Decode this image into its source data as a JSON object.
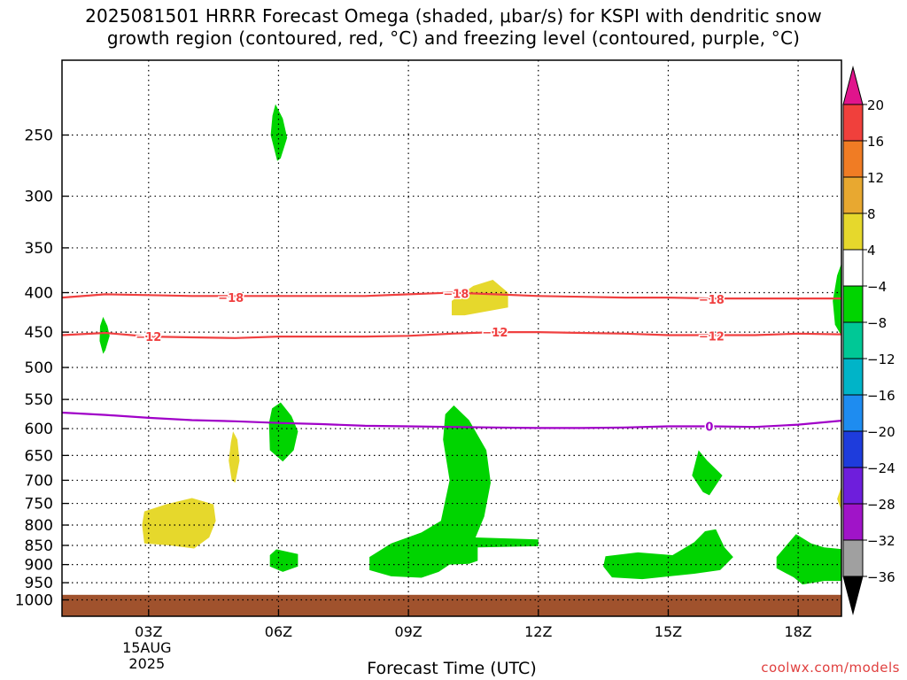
{
  "chart_data": {
    "type": "heatmap",
    "title_line1": "2025081501 HRRR Forecast Omega (shaded, μbar/s) for KSPI with dendritic snow",
    "title_line2": "growth region (contoured, red, °C) and freezing level (contoured, purple, °C)",
    "xlabel": "Forecast Time (UTC)",
    "credit": "coolwx.com/models",
    "x_range_hours": [
      1,
      19
    ],
    "y_scale": "log-pressure",
    "y_range_mb": [
      200,
      1050
    ],
    "grid": "dotted",
    "x_ticks": [
      {
        "hour": 3,
        "label": "03Z",
        "sub": [
          "15AUG",
          "2025"
        ]
      },
      {
        "hour": 6,
        "label": "06Z"
      },
      {
        "hour": 9,
        "label": "09Z"
      },
      {
        "hour": 12,
        "label": "12Z"
      },
      {
        "hour": 15,
        "label": "15Z"
      },
      {
        "hour": 18,
        "label": "18Z"
      }
    ],
    "y_ticks": [
      250,
      300,
      350,
      400,
      450,
      500,
      550,
      600,
      650,
      700,
      750,
      800,
      850,
      900,
      950,
      1000
    ],
    "colorbar": {
      "labels": [
        "20",
        "16",
        "12",
        "8",
        "4",
        "−4",
        "−8",
        "−12",
        "−16",
        "−20",
        "−24",
        "−28",
        "−32",
        "−36"
      ],
      "top_color": "#e0148c",
      "bottom_color": "#000000",
      "bands": [
        {
          "from": 16,
          "to": 20,
          "color": "#f0403c"
        },
        {
          "from": 12,
          "to": 16,
          "color": "#f07c24"
        },
        {
          "from": 8,
          "to": 12,
          "color": "#e8a830"
        },
        {
          "from": 4,
          "to": 8,
          "color": "#e6d82c"
        },
        {
          "from": -4,
          "to": 4,
          "color": "#ffffff"
        },
        {
          "from": -8,
          "to": -4,
          "color": "#00d400"
        },
        {
          "from": -12,
          "to": -8,
          "color": "#00c896"
        },
        {
          "from": -16,
          "to": -12,
          "color": "#00b4c8"
        },
        {
          "from": -20,
          "to": -16,
          "color": "#1e8cf0"
        },
        {
          "from": -24,
          "to": -20,
          "color": "#1e3cdc"
        },
        {
          "from": -28,
          "to": -24,
          "color": "#6e1edc"
        },
        {
          "from": -32,
          "to": -28,
          "color": "#a014c8"
        },
        {
          "from": -36,
          "to": -32,
          "color": "#a0a0a0"
        }
      ]
    },
    "ground_color": "#a0522d",
    "ground_from_mb": 985,
    "omega_regions": [
      {
        "color": "#00d400",
        "points": [
          [
            5.93,
            228
          ],
          [
            6.1,
            238
          ],
          [
            6.2,
            252
          ],
          [
            6.05,
            268
          ],
          [
            5.97,
            270
          ],
          [
            5.82,
            250
          ],
          [
            5.86,
            236
          ]
        ]
      },
      {
        "color": "#00d400",
        "points": [
          [
            1.95,
            430
          ],
          [
            2.05,
            442
          ],
          [
            2.1,
            455
          ],
          [
            2.0,
            475
          ],
          [
            1.95,
            480
          ],
          [
            1.87,
            462
          ],
          [
            1.88,
            442
          ]
        ]
      },
      {
        "color": "#00d400",
        "points": [
          [
            6.05,
            555
          ],
          [
            6.3,
            578
          ],
          [
            6.45,
            605
          ],
          [
            6.35,
            640
          ],
          [
            6.1,
            662
          ],
          [
            5.8,
            640
          ],
          [
            5.78,
            590
          ],
          [
            5.85,
            565
          ]
        ]
      },
      {
        "color": "#00d400",
        "points": [
          [
            10.05,
            560
          ],
          [
            10.4,
            585
          ],
          [
            10.8,
            640
          ],
          [
            10.9,
            705
          ],
          [
            10.75,
            780
          ],
          [
            10.55,
            830
          ],
          [
            12.0,
            835
          ],
          [
            12.0,
            852
          ],
          [
            10.6,
            855
          ],
          [
            10.6,
            890
          ],
          [
            10.4,
            898
          ],
          [
            9.95,
            900
          ],
          [
            9.7,
            920
          ],
          [
            9.3,
            936
          ],
          [
            8.6,
            932
          ],
          [
            8.1,
            915
          ],
          [
            8.1,
            880
          ],
          [
            8.6,
            845
          ],
          [
            9.3,
            818
          ],
          [
            9.75,
            790
          ],
          [
            9.95,
            700
          ],
          [
            9.8,
            620
          ],
          [
            9.85,
            575
          ]
        ]
      },
      {
        "color": "#00d400",
        "points": [
          [
            5.95,
            860
          ],
          [
            6.45,
            872
          ],
          [
            6.45,
            905
          ],
          [
            6.1,
            920
          ],
          [
            5.8,
            905
          ],
          [
            5.8,
            875
          ]
        ]
      },
      {
        "color": "#00d400",
        "points": [
          [
            15.7,
            640
          ],
          [
            15.9,
            660
          ],
          [
            16.25,
            690
          ],
          [
            15.95,
            732
          ],
          [
            15.8,
            725
          ],
          [
            15.55,
            690
          ]
        ]
      },
      {
        "color": "#00d400",
        "points": [
          [
            13.55,
            878
          ],
          [
            14.3,
            868
          ],
          [
            15.1,
            875
          ],
          [
            15.6,
            842
          ],
          [
            15.85,
            815
          ],
          [
            16.1,
            810
          ],
          [
            16.3,
            855
          ],
          [
            16.5,
            880
          ],
          [
            16.2,
            915
          ],
          [
            15.6,
            925
          ],
          [
            14.4,
            940
          ],
          [
            13.7,
            935
          ],
          [
            13.5,
            905
          ]
        ]
      },
      {
        "color": "#00d400",
        "points": [
          [
            17.95,
            822
          ],
          [
            18.3,
            845
          ],
          [
            18.6,
            855
          ],
          [
            19.05,
            860
          ],
          [
            19.05,
            945
          ],
          [
            18.6,
            945
          ],
          [
            18.1,
            955
          ],
          [
            17.9,
            935
          ],
          [
            17.5,
            910
          ],
          [
            17.5,
            880
          ]
        ]
      },
      {
        "color": "#00d400",
        "points": [
          [
            19.05,
            360
          ],
          [
            18.9,
            380
          ],
          [
            18.8,
            410
          ],
          [
            18.85,
            440
          ],
          [
            19.05,
            460
          ]
        ]
      },
      {
        "color": "#e6d82c",
        "points": [
          [
            10.0,
            410
          ],
          [
            10.5,
            392
          ],
          [
            10.95,
            385
          ],
          [
            11.3,
            400
          ],
          [
            11.3,
            418
          ],
          [
            10.3,
            428
          ],
          [
            10.0,
            428
          ]
        ]
      },
      {
        "color": "#e6d82c",
        "points": [
          [
            4.95,
            605
          ],
          [
            5.05,
            620
          ],
          [
            5.1,
            660
          ],
          [
            5.0,
            705
          ],
          [
            4.92,
            700
          ],
          [
            4.85,
            660
          ],
          [
            4.9,
            625
          ]
        ]
      },
      {
        "color": "#e6d82c",
        "points": [
          [
            2.9,
            768
          ],
          [
            3.4,
            752
          ],
          [
            4.0,
            738
          ],
          [
            4.5,
            752
          ],
          [
            4.55,
            790
          ],
          [
            4.4,
            830
          ],
          [
            4.05,
            858
          ],
          [
            3.5,
            850
          ],
          [
            2.9,
            845
          ],
          [
            2.85,
            800
          ]
        ]
      },
      {
        "color": "#e6d82c",
        "points": [
          [
            19.05,
            700
          ],
          [
            18.9,
            740
          ],
          [
            19.05,
            780
          ]
        ]
      }
    ],
    "contours": [
      {
        "name": "-18",
        "color": "#f04040",
        "label_color": "#f04040",
        "points": [
          [
            1,
            406
          ],
          [
            2,
            402
          ],
          [
            3,
            403
          ],
          [
            4,
            404
          ],
          [
            5,
            404
          ],
          [
            6,
            404
          ],
          [
            7,
            404
          ],
          [
            8,
            404
          ],
          [
            9,
            402
          ],
          [
            10,
            400
          ],
          [
            11,
            402
          ],
          [
            12,
            404
          ],
          [
            13,
            405
          ],
          [
            14,
            406
          ],
          [
            15,
            406
          ],
          [
            16,
            407
          ],
          [
            17,
            407
          ],
          [
            18,
            407
          ],
          [
            19,
            407
          ]
        ],
        "labels": [
          [
            4.9,
            406
          ],
          [
            10.1,
            401
          ],
          [
            16.0,
            408
          ]
        ]
      },
      {
        "name": "-12",
        "color": "#f04040",
        "label_color": "#f04040",
        "points": [
          [
            1,
            454
          ],
          [
            2,
            451
          ],
          [
            3,
            456
          ],
          [
            4,
            457
          ],
          [
            5,
            458
          ],
          [
            6,
            456
          ],
          [
            7,
            456
          ],
          [
            8,
            456
          ],
          [
            9,
            455
          ],
          [
            10,
            452
          ],
          [
            11,
            450
          ],
          [
            12,
            450
          ],
          [
            13,
            451
          ],
          [
            14,
            452
          ],
          [
            15,
            454
          ],
          [
            16,
            454
          ],
          [
            17,
            454
          ],
          [
            18,
            452
          ],
          [
            19,
            453
          ]
        ],
        "labels": [
          [
            3.0,
            456
          ],
          [
            11.0,
            450
          ],
          [
            16.0,
            455
          ]
        ]
      },
      {
        "name": "0",
        "color": "#a000c8",
        "label_color": "#a000c8",
        "points": [
          [
            1,
            572
          ],
          [
            2,
            576
          ],
          [
            3,
            581
          ],
          [
            4,
            585
          ],
          [
            5,
            587
          ],
          [
            6,
            590
          ],
          [
            7,
            592
          ],
          [
            8,
            595
          ],
          [
            9,
            596
          ],
          [
            10,
            597
          ],
          [
            11,
            598
          ],
          [
            12,
            599
          ],
          [
            13,
            599
          ],
          [
            14,
            598
          ],
          [
            15,
            596
          ],
          [
            16,
            596
          ],
          [
            17,
            597
          ],
          [
            18,
            593
          ],
          [
            19,
            586
          ]
        ],
        "labels": [
          [
            15.95,
            596
          ]
        ]
      }
    ]
  }
}
